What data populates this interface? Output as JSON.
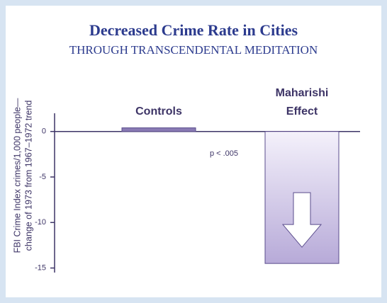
{
  "chart_data": {
    "type": "bar",
    "title": "Decreased Crime Rate in Cities",
    "subtitle": "THROUGH TRANSCENDENTAL MEDITATION",
    "y_label": [
      "FBI Crime Index crimes/1,000 people—",
      "change of 1973 from 1967–1972 trend"
    ],
    "annotation": "p < .005",
    "categories": [
      "Controls",
      "Maharishi Effect"
    ],
    "values": [
      0.4,
      -14.5
    ],
    "colors": [
      "#8a7bb4",
      "#c9bfe3"
    ],
    "ylim": [
      -15.5,
      2
    ],
    "yticks": [
      0,
      -5,
      -10,
      -15
    ]
  }
}
